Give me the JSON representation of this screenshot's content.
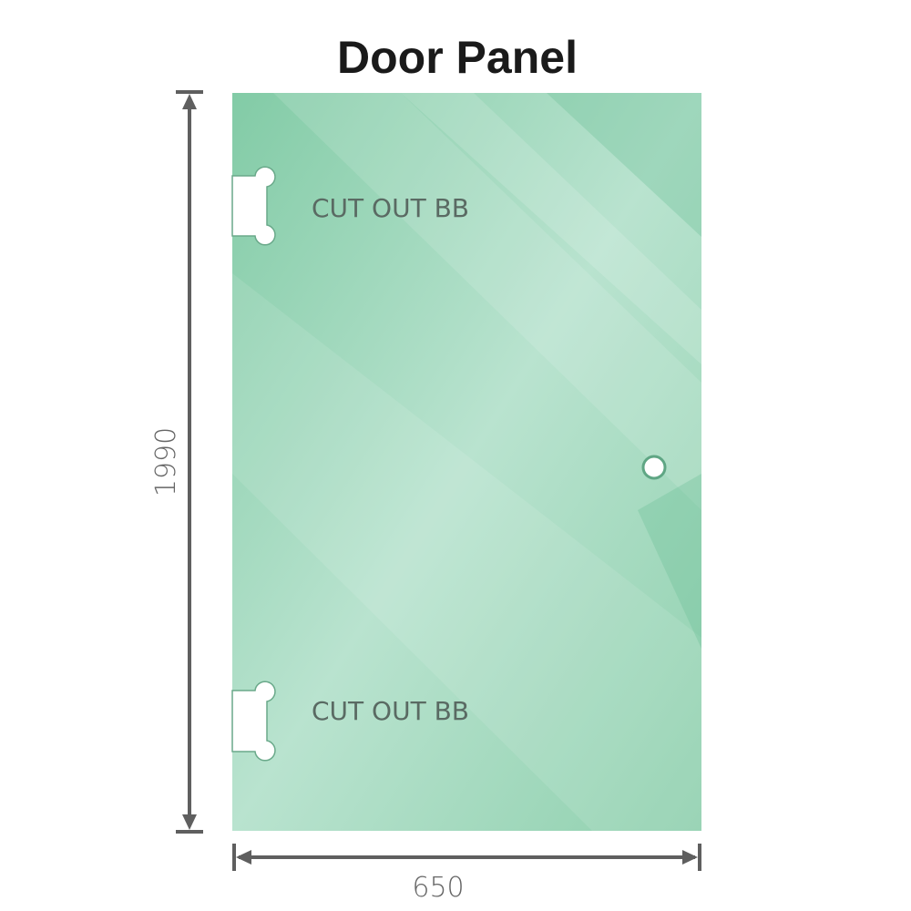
{
  "title": "Door Panel",
  "dimensions": {
    "height": "1990",
    "width": "650"
  },
  "cutouts": [
    {
      "label": "CUT OUT BB"
    },
    {
      "label": "CUT OUT BB"
    }
  ],
  "colors": {
    "glass": "#7fcaa3",
    "glass_light": "#bfe6d3",
    "dimension_line": "#5f5f5f",
    "text": "#1a1a1a"
  }
}
